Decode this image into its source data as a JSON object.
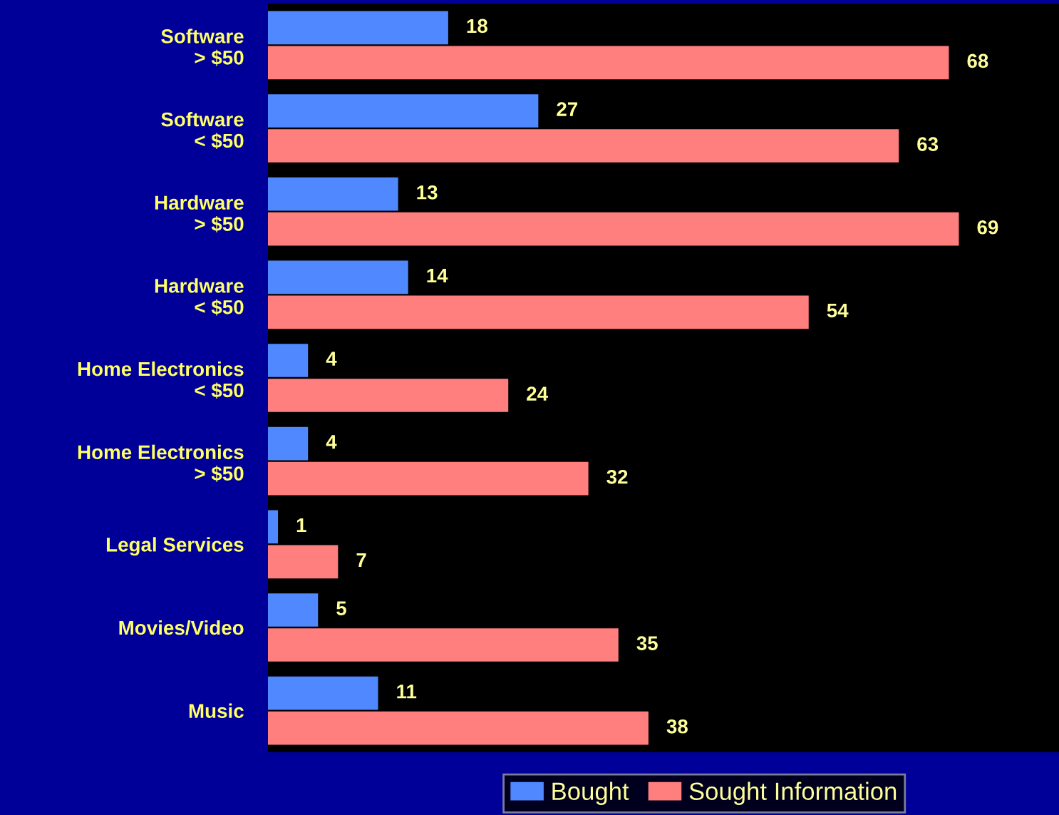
{
  "chart_data": {
    "type": "bar",
    "orientation": "horizontal",
    "categories": [
      "Software\n> $50",
      "Software\n< $50",
      "Hardware\n> $50",
      "Hardware\n< $50",
      "Home Electronics\n< $50",
      "Home Electronics\n> $50",
      "Legal Services",
      "Movies/Video",
      "Music"
    ],
    "series": [
      {
        "name": "Bought",
        "color": "#4f88ff",
        "values": [
          18,
          27,
          13,
          14,
          4,
          4,
          1,
          5,
          11
        ]
      },
      {
        "name": "Sought Information",
        "color": "#ff7f7f",
        "values": [
          68,
          63,
          69,
          54,
          24,
          32,
          7,
          35,
          38
        ]
      }
    ],
    "xlim": [
      0,
      79
    ],
    "tick_labels": "y",
    "data_labels": true,
    "legend": "bottom",
    "grid": false
  }
}
